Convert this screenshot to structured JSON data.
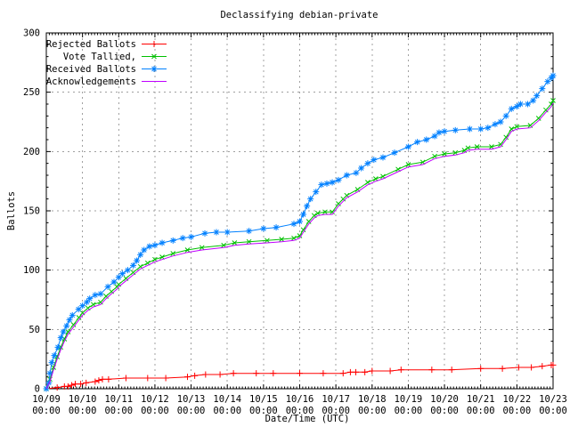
{
  "chart_data": {
    "type": "line",
    "title": "Declassifying debian-private",
    "xlabel": "Date/Time (UTC)",
    "ylabel": "Ballots",
    "xlim_days": [
      0,
      14
    ],
    "ylim": [
      0,
      300
    ],
    "grid": "dashed-gray-at-major-ticks",
    "legend_position": "top-left-inside",
    "colors": {
      "background": "#ffffff",
      "border": "#000000",
      "grid": "#a0a0a0",
      "text": "#000000"
    },
    "y_ticks": [
      0,
      50,
      100,
      150,
      200,
      250,
      300
    ],
    "x_ticks": [
      {
        "x": 0,
        "date": "10/09",
        "time": "00:00"
      },
      {
        "x": 1,
        "date": "10/10",
        "time": "00:00"
      },
      {
        "x": 2,
        "date": "10/11",
        "time": "00:00"
      },
      {
        "x": 3,
        "date": "10/12",
        "time": "00:00"
      },
      {
        "x": 4,
        "date": "10/13",
        "time": "00:00"
      },
      {
        "x": 5,
        "date": "10/14",
        "time": "00:00"
      },
      {
        "x": 6,
        "date": "10/15",
        "time": "00:00"
      },
      {
        "x": 7,
        "date": "10/16",
        "time": "00:00"
      },
      {
        "x": 8,
        "date": "10/17",
        "time": "00:00"
      },
      {
        "x": 9,
        "date": "10/18",
        "time": "00:00"
      },
      {
        "x": 10,
        "date": "10/19",
        "time": "00:00"
      },
      {
        "x": 11,
        "date": "10/20",
        "time": "00:00"
      },
      {
        "x": 12,
        "date": "10/21",
        "time": "00:00"
      },
      {
        "x": 13,
        "date": "10/22",
        "time": "00:00"
      },
      {
        "x": 14,
        "date": "10/23",
        "time": "00:00"
      }
    ],
    "series": [
      {
        "id": "rejected-ballots",
        "name": "Rejected Ballots",
        "color": "#ff0000",
        "marker": "plus",
        "points": [
          [
            0,
            0
          ],
          [
            0.3,
            1
          ],
          [
            0.5,
            2
          ],
          [
            0.6,
            2
          ],
          [
            0.7,
            3
          ],
          [
            0.8,
            4
          ],
          [
            0.95,
            4
          ],
          [
            1.1,
            5
          ],
          [
            1.35,
            6
          ],
          [
            1.45,
            7
          ],
          [
            1.55,
            8
          ],
          [
            1.72,
            8
          ],
          [
            2.2,
            9
          ],
          [
            2.8,
            9
          ],
          [
            3.3,
            9
          ],
          [
            3.9,
            10
          ],
          [
            4.1,
            11
          ],
          [
            4.4,
            12
          ],
          [
            4.8,
            12
          ],
          [
            5.17,
            13
          ],
          [
            5.8,
            13
          ],
          [
            6.27,
            13
          ],
          [
            7.0,
            13
          ],
          [
            7.65,
            13
          ],
          [
            8.2,
            13
          ],
          [
            8.4,
            14
          ],
          [
            8.55,
            14
          ],
          [
            8.8,
            14
          ],
          [
            9.0,
            15
          ],
          [
            9.5,
            15
          ],
          [
            9.8,
            16
          ],
          [
            10.65,
            16
          ],
          [
            11.2,
            16
          ],
          [
            12.0,
            17
          ],
          [
            12.6,
            17
          ],
          [
            13.05,
            18
          ],
          [
            13.4,
            18
          ],
          [
            13.7,
            19
          ],
          [
            13.95,
            20
          ],
          [
            14,
            20
          ]
        ]
      },
      {
        "id": "vote-tallied",
        "name": "Vote Tallied,",
        "color": "#00c000",
        "marker": "cross",
        "points": [
          [
            0,
            0
          ],
          [
            0.1,
            8
          ],
          [
            0.2,
            18
          ],
          [
            0.3,
            27
          ],
          [
            0.4,
            35
          ],
          [
            0.5,
            42
          ],
          [
            0.6,
            48
          ],
          [
            0.75,
            54
          ],
          [
            0.9,
            60
          ],
          [
            1.0,
            64
          ],
          [
            1.15,
            68
          ],
          [
            1.3,
            71
          ],
          [
            1.5,
            73
          ],
          [
            1.65,
            78
          ],
          [
            1.8,
            82
          ],
          [
            1.95,
            86
          ],
          [
            2.0,
            88
          ],
          [
            2.2,
            93
          ],
          [
            2.4,
            98
          ],
          [
            2.6,
            103
          ],
          [
            2.8,
            106
          ],
          [
            3.0,
            109
          ],
          [
            3.2,
            111
          ],
          [
            3.5,
            114
          ],
          [
            3.9,
            117
          ],
          [
            4.3,
            119
          ],
          [
            4.9,
            121
          ],
          [
            5.2,
            123
          ],
          [
            5.6,
            124
          ],
          [
            6.1,
            125
          ],
          [
            6.5,
            126
          ],
          [
            6.84,
            127
          ],
          [
            7.0,
            129
          ],
          [
            7.1,
            134
          ],
          [
            7.25,
            141
          ],
          [
            7.4,
            146
          ],
          [
            7.5,
            148
          ],
          [
            7.7,
            149
          ],
          [
            7.9,
            149
          ],
          [
            8.07,
            156
          ],
          [
            8.2,
            160
          ],
          [
            8.3,
            163
          ],
          [
            8.6,
            168
          ],
          [
            8.88,
            174
          ],
          [
            9.1,
            177
          ],
          [
            9.3,
            179
          ],
          [
            9.72,
            185
          ],
          [
            10.0,
            189
          ],
          [
            10.4,
            191
          ],
          [
            10.73,
            196
          ],
          [
            11.0,
            198
          ],
          [
            11.3,
            199
          ],
          [
            11.55,
            201
          ],
          [
            11.65,
            203
          ],
          [
            11.9,
            204
          ],
          [
            12.3,
            204
          ],
          [
            12.55,
            206
          ],
          [
            12.7,
            212
          ],
          [
            12.85,
            219
          ],
          [
            13.0,
            221
          ],
          [
            13.37,
            222
          ],
          [
            13.6,
            228
          ],
          [
            13.8,
            235
          ],
          [
            13.95,
            240
          ],
          [
            14,
            243
          ]
        ]
      },
      {
        "id": "received-ballots",
        "name": "Received Ballots",
        "color": "#0080ff",
        "marker": "asterisk",
        "points": [
          [
            0,
            0
          ],
          [
            0.07,
            5
          ],
          [
            0.1,
            13
          ],
          [
            0.15,
            22
          ],
          [
            0.22,
            28
          ],
          [
            0.32,
            35
          ],
          [
            0.4,
            43
          ],
          [
            0.47,
            48
          ],
          [
            0.56,
            53
          ],
          [
            0.64,
            58
          ],
          [
            0.72,
            62
          ],
          [
            0.89,
            67
          ],
          [
            1.0,
            70
          ],
          [
            1.12,
            73
          ],
          [
            1.2,
            76
          ],
          [
            1.35,
            79
          ],
          [
            1.5,
            80
          ],
          [
            1.7,
            86
          ],
          [
            1.87,
            90
          ],
          [
            2.0,
            94
          ],
          [
            2.1,
            97
          ],
          [
            2.25,
            100
          ],
          [
            2.4,
            104
          ],
          [
            2.5,
            108
          ],
          [
            2.6,
            113
          ],
          [
            2.7,
            117
          ],
          [
            2.85,
            120
          ],
          [
            3.0,
            121
          ],
          [
            3.2,
            123
          ],
          [
            3.5,
            125
          ],
          [
            3.77,
            127
          ],
          [
            4.0,
            128
          ],
          [
            4.38,
            131
          ],
          [
            4.7,
            132
          ],
          [
            5.0,
            132
          ],
          [
            5.6,
            133
          ],
          [
            6.0,
            135
          ],
          [
            6.35,
            136
          ],
          [
            6.84,
            139
          ],
          [
            7.0,
            141
          ],
          [
            7.1,
            147
          ],
          [
            7.2,
            154
          ],
          [
            7.3,
            160
          ],
          [
            7.45,
            166
          ],
          [
            7.6,
            172
          ],
          [
            7.75,
            173
          ],
          [
            7.9,
            174
          ],
          [
            8.07,
            176
          ],
          [
            8.3,
            180
          ],
          [
            8.56,
            182
          ],
          [
            8.7,
            186
          ],
          [
            8.88,
            190
          ],
          [
            9.05,
            193
          ],
          [
            9.3,
            195
          ],
          [
            9.62,
            199
          ],
          [
            10.0,
            204
          ],
          [
            10.25,
            208
          ],
          [
            10.5,
            210
          ],
          [
            10.73,
            213
          ],
          [
            10.85,
            216
          ],
          [
            11.0,
            217
          ],
          [
            11.3,
            218
          ],
          [
            11.7,
            219
          ],
          [
            12.0,
            219
          ],
          [
            12.2,
            220
          ],
          [
            12.4,
            223
          ],
          [
            12.55,
            225
          ],
          [
            12.7,
            230
          ],
          [
            12.85,
            236
          ],
          [
            13.0,
            238
          ],
          [
            13.1,
            240
          ],
          [
            13.3,
            240
          ],
          [
            13.45,
            243
          ],
          [
            13.55,
            247
          ],
          [
            13.7,
            253
          ],
          [
            13.85,
            259
          ],
          [
            13.95,
            262
          ],
          [
            14,
            264
          ]
        ]
      },
      {
        "id": "acknowledgements",
        "name": "Acknowledgements",
        "color": "#c000ff",
        "marker": "none",
        "points": [
          [
            0,
            0
          ],
          [
            0.1,
            6
          ],
          [
            0.2,
            16
          ],
          [
            0.3,
            25
          ],
          [
            0.4,
            33
          ],
          [
            0.5,
            40
          ],
          [
            0.6,
            46
          ],
          [
            0.75,
            52
          ],
          [
            0.9,
            58
          ],
          [
            1.0,
            62
          ],
          [
            1.15,
            66
          ],
          [
            1.3,
            69
          ],
          [
            1.5,
            71
          ],
          [
            1.65,
            76
          ],
          [
            1.8,
            80
          ],
          [
            1.95,
            84
          ],
          [
            2.0,
            86
          ],
          [
            2.2,
            91
          ],
          [
            2.4,
            96
          ],
          [
            2.6,
            101
          ],
          [
            2.8,
            104
          ],
          [
            3.0,
            107
          ],
          [
            3.2,
            109
          ],
          [
            3.5,
            112
          ],
          [
            3.9,
            115
          ],
          [
            4.3,
            117
          ],
          [
            4.9,
            119
          ],
          [
            5.2,
            121
          ],
          [
            5.6,
            122
          ],
          [
            6.1,
            123
          ],
          [
            6.5,
            124
          ],
          [
            6.84,
            125
          ],
          [
            7.0,
            127
          ],
          [
            7.1,
            132
          ],
          [
            7.25,
            139
          ],
          [
            7.4,
            144
          ],
          [
            7.5,
            146
          ],
          [
            7.7,
            147
          ],
          [
            7.9,
            147
          ],
          [
            8.07,
            154
          ],
          [
            8.2,
            158
          ],
          [
            8.3,
            161
          ],
          [
            8.6,
            166
          ],
          [
            8.88,
            172
          ],
          [
            9.1,
            175
          ],
          [
            9.3,
            177
          ],
          [
            9.72,
            183
          ],
          [
            10.0,
            187
          ],
          [
            10.4,
            189
          ],
          [
            10.73,
            194
          ],
          [
            11.0,
            196
          ],
          [
            11.3,
            197
          ],
          [
            11.55,
            199
          ],
          [
            11.65,
            201
          ],
          [
            11.9,
            202
          ],
          [
            12.3,
            202
          ],
          [
            12.55,
            204
          ],
          [
            12.7,
            210
          ],
          [
            12.85,
            217
          ],
          [
            13.0,
            219
          ],
          [
            13.37,
            220
          ],
          [
            13.6,
            226
          ],
          [
            13.8,
            233
          ],
          [
            13.95,
            238
          ],
          [
            14,
            241
          ]
        ]
      }
    ]
  }
}
